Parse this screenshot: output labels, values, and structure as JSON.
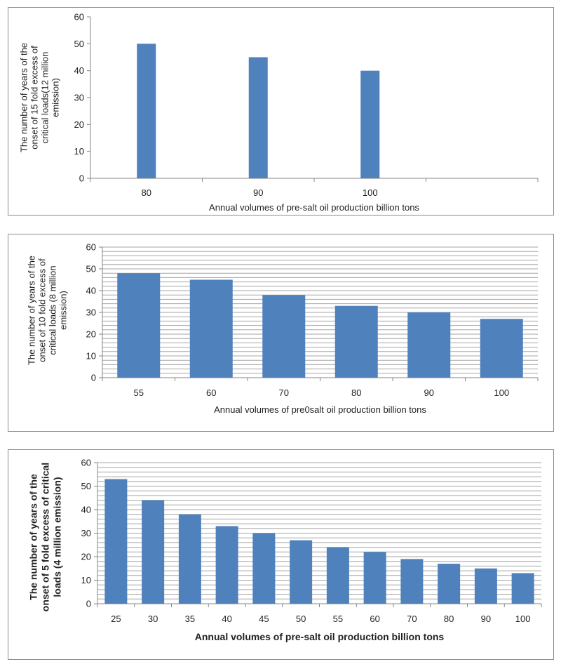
{
  "chart_data": [
    {
      "type": "bar",
      "categories": [
        "80",
        "90",
        "100",
        ""
      ],
      "values": [
        50,
        45,
        40,
        null
      ],
      "xlabel": "Annual volumes of pre-salt oil production billion tons",
      "ylabel_lines": [
        "The number of years of the",
        "onset of 15 fold excess of",
        "critical loads(12 million",
        "emission)"
      ],
      "ylim": [
        0,
        60
      ],
      "yticks": [
        0,
        10,
        20,
        30,
        40,
        50,
        60
      ],
      "grid": "none",
      "bar_color": "#4f81bd"
    },
    {
      "type": "bar",
      "categories": [
        "55",
        "60",
        "70",
        "80",
        "90",
        "100"
      ],
      "values": [
        48,
        45,
        38,
        33,
        30,
        27
      ],
      "xlabel": "Annual volumes of pre0salt oil production billion tons",
      "ylabel_lines": [
        "The number of years of the",
        "onset of 10 fold excess of",
        "critical loads (8 million",
        "emission)"
      ],
      "ylim": [
        0,
        60
      ],
      "yticks": [
        0,
        10,
        20,
        30,
        40,
        50,
        60
      ],
      "grid": "dense",
      "bar_color": "#4f81bd"
    },
    {
      "type": "bar",
      "categories": [
        "25",
        "30",
        "35",
        "40",
        "45",
        "50",
        "55",
        "60",
        "70",
        "80",
        "90",
        "100"
      ],
      "values": [
        53,
        44,
        38,
        33,
        30,
        27,
        24,
        22,
        19,
        17,
        15,
        13
      ],
      "xlabel": "Annual volumes of pre-salt oil production billion tons",
      "ylabel_lines": [
        "The number of years of the",
        "onset of 5 fold excess of critical",
        "loads (4 million emission)"
      ],
      "ylim": [
        0,
        60
      ],
      "yticks": [
        0,
        10,
        20,
        30,
        40,
        50,
        60
      ],
      "grid": "dense",
      "bar_color": "#4f81bd"
    }
  ]
}
